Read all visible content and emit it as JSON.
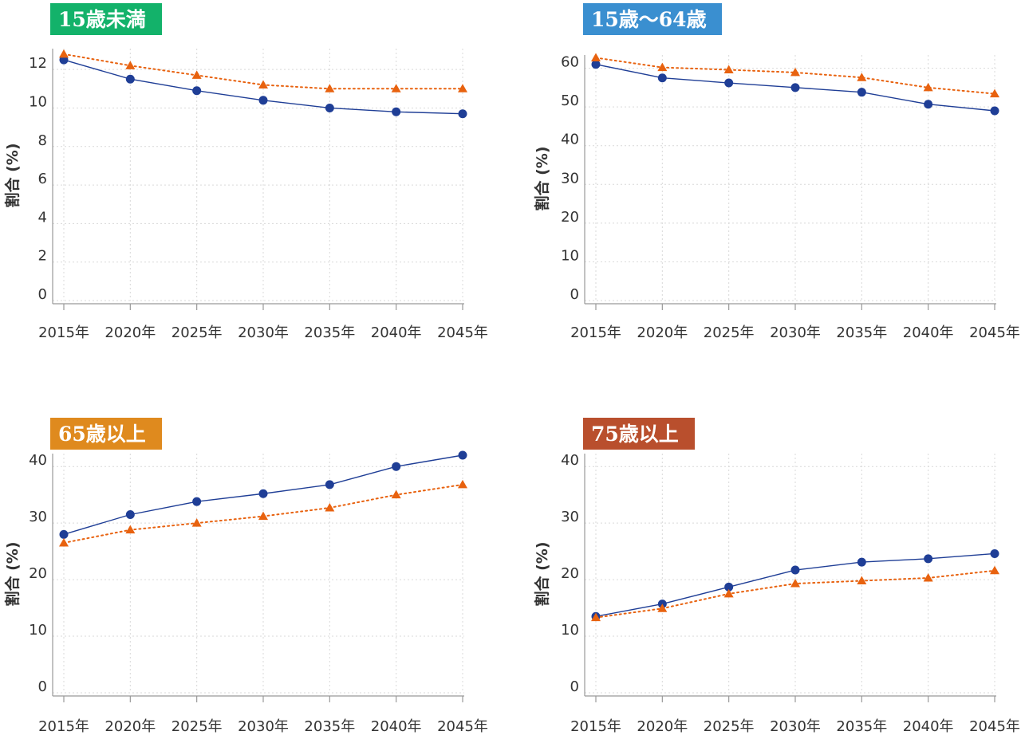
{
  "colors": {
    "series_a": "#1f3e96",
    "series_b": "#e8620f",
    "grid": "#d9d9d9",
    "axis": "#999999"
  },
  "chart_data": [
    {
      "type": "line",
      "title": "15歳未満",
      "title_color": "#13b26a",
      "ylabel": "割合 (%)",
      "categories": [
        "2015年",
        "2020年",
        "2025年",
        "2030年",
        "2035年",
        "2040年",
        "2045年"
      ],
      "ylim": [
        0,
        13
      ],
      "yticks": [
        0,
        2,
        4,
        6,
        8,
        10,
        12
      ],
      "series": [
        {
          "name": "series-a",
          "style": "solid-circle",
          "values": [
            12.5,
            11.5,
            10.9,
            10.4,
            10.0,
            9.8,
            9.7
          ]
        },
        {
          "name": "series-b",
          "style": "dotted-triangle",
          "values": [
            12.8,
            12.2,
            11.7,
            11.2,
            11.0,
            11.0,
            11.0
          ]
        }
      ]
    },
    {
      "type": "line",
      "title": "15歳～64歳",
      "title_color": "#3a8fd0",
      "ylabel": "割合 (%)",
      "categories": [
        "2015年",
        "2020年",
        "2025年",
        "2030年",
        "2035年",
        "2040年",
        "2045年"
      ],
      "ylim": [
        0,
        63
      ],
      "yticks": [
        0,
        10,
        20,
        30,
        40,
        50,
        60
      ],
      "series": [
        {
          "name": "series-a",
          "style": "solid-circle",
          "values": [
            61.0,
            57.5,
            56.2,
            55.0,
            53.8,
            50.7,
            49.0
          ]
        },
        {
          "name": "series-b",
          "style": "dotted-triangle",
          "values": [
            62.7,
            60.2,
            59.6,
            58.9,
            57.6,
            55.0,
            53.4
          ]
        }
      ]
    },
    {
      "type": "line",
      "title": "65歳以上",
      "title_color": "#df8a1e",
      "ylabel": "割合 (%)",
      "categories": [
        "2015年",
        "2020年",
        "2025年",
        "2030年",
        "2035年",
        "2040年",
        "2045年"
      ],
      "ylim": [
        0,
        42
      ],
      "yticks": [
        0,
        10,
        20,
        30,
        40
      ],
      "series": [
        {
          "name": "series-a",
          "style": "solid-circle",
          "values": [
            28.0,
            31.5,
            33.8,
            35.2,
            36.8,
            40.0,
            42.0
          ]
        },
        {
          "name": "series-b",
          "style": "dotted-triangle",
          "values": [
            26.5,
            28.8,
            30.0,
            31.2,
            32.7,
            35.0,
            36.8
          ]
        }
      ]
    },
    {
      "type": "line",
      "title": "75歳以上",
      "title_color": "#b94f2d",
      "ylabel": "割合 (%)",
      "categories": [
        "2015年",
        "2020年",
        "2025年",
        "2030年",
        "2035年",
        "2040年",
        "2045年"
      ],
      "ylim": [
        0,
        42
      ],
      "yticks": [
        0,
        10,
        20,
        30,
        40
      ],
      "series": [
        {
          "name": "series-a",
          "style": "solid-circle",
          "values": [
            13.5,
            15.7,
            18.7,
            21.7,
            23.1,
            23.7,
            24.6
          ]
        },
        {
          "name": "series-b",
          "style": "dotted-triangle",
          "values": [
            13.3,
            14.9,
            17.5,
            19.3,
            19.8,
            20.3,
            21.6
          ]
        }
      ]
    }
  ]
}
